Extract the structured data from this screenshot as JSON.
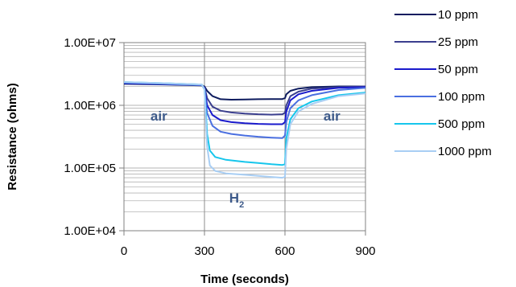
{
  "chart_data": {
    "type": "line",
    "title": "",
    "xlabel": "Time (seconds)",
    "ylabel": "Resistance (ohms)",
    "xlim": [
      0,
      900
    ],
    "ylim": [
      10000,
      10000000
    ],
    "yscale": "log",
    "x_ticks": [
      0,
      300,
      600,
      900
    ],
    "x_tick_labels": [
      "0",
      "300",
      "600",
      "900"
    ],
    "y_ticks": [
      10000,
      100000,
      1000000,
      10000000
    ],
    "y_tick_labels": [
      "1.00E+04",
      "1.00E+05",
      "1.00E+06",
      "1.00E+07"
    ],
    "grid": true,
    "legend_position": "right",
    "annotations": [
      {
        "text": "air",
        "x": 130,
        "y": 570000
      },
      {
        "text": "H",
        "sub": "2",
        "x": 420,
        "y": 28000
      },
      {
        "text": "air",
        "x": 775,
        "y": 570000
      }
    ],
    "series": [
      {
        "name": "10 ppm",
        "color": "#0d1b5e",
        "x": [
          0,
          150,
          290,
          300,
          310,
          330,
          360,
          400,
          450,
          500,
          550,
          590,
          600,
          605,
          620,
          650,
          700,
          800,
          900
        ],
        "y": [
          2200000,
          2150000,
          2080000,
          2000000,
          1700000,
          1400000,
          1250000,
          1230000,
          1240000,
          1250000,
          1260000,
          1260000,
          1300000,
          1500000,
          1700000,
          1850000,
          1950000,
          2000000,
          2000000
        ]
      },
      {
        "name": "25 ppm",
        "color": "#3b3f8e",
        "x": [
          0,
          150,
          290,
          300,
          310,
          330,
          360,
          400,
          450,
          500,
          550,
          590,
          600,
          605,
          620,
          650,
          700,
          800,
          900
        ],
        "y": [
          2250000,
          2180000,
          2100000,
          1950000,
          1300000,
          950000,
          820000,
          770000,
          740000,
          720000,
          710000,
          720000,
          760000,
          1000000,
          1400000,
          1650000,
          1850000,
          1950000,
          2000000
        ]
      },
      {
        "name": "50 ppm",
        "color": "#1a1acc",
        "x": [
          0,
          150,
          290,
          300,
          310,
          330,
          360,
          400,
          450,
          500,
          550,
          590,
          600,
          605,
          620,
          650,
          700,
          800,
          900
        ],
        "y": [
          2250000,
          2180000,
          2100000,
          1900000,
          1000000,
          700000,
          580000,
          540000,
          520000,
          505000,
          500000,
          500000,
          540000,
          800000,
          1200000,
          1500000,
          1700000,
          1900000,
          1950000
        ]
      },
      {
        "name": "100 ppm",
        "color": "#4a6fe0",
        "x": [
          0,
          150,
          290,
          300,
          310,
          330,
          360,
          400,
          450,
          500,
          550,
          590,
          600,
          605,
          620,
          650,
          700,
          800,
          900
        ],
        "y": [
          2300000,
          2200000,
          2100000,
          1800000,
          750000,
          470000,
          380000,
          350000,
          330000,
          315000,
          305000,
          300000,
          330000,
          550000,
          900000,
          1200000,
          1450000,
          1750000,
          1900000
        ]
      },
      {
        "name": "500 ppm",
        "color": "#16c6ec",
        "x": [
          0,
          150,
          290,
          300,
          305,
          310,
          320,
          340,
          380,
          450,
          500,
          550,
          590,
          600,
          605,
          620,
          650,
          700,
          800,
          900
        ],
        "y": [
          2350000,
          2250000,
          2150000,
          1800000,
          800000,
          350000,
          190000,
          150000,
          135000,
          125000,
          120000,
          115000,
          112000,
          115000,
          300000,
          600000,
          900000,
          1150000,
          1450000,
          1600000
        ]
      },
      {
        "name": "1000 ppm",
        "color": "#a8cef4",
        "x": [
          0,
          150,
          290,
          300,
          305,
          310,
          320,
          340,
          380,
          450,
          500,
          550,
          590,
          600,
          605,
          620,
          650,
          700,
          800,
          900
        ],
        "y": [
          2350000,
          2250000,
          2150000,
          1800000,
          600000,
          220000,
          110000,
          90000,
          82000,
          78000,
          75000,
          72000,
          70000,
          72000,
          200000,
          500000,
          800000,
          1050000,
          1400000,
          1550000
        ]
      }
    ]
  }
}
